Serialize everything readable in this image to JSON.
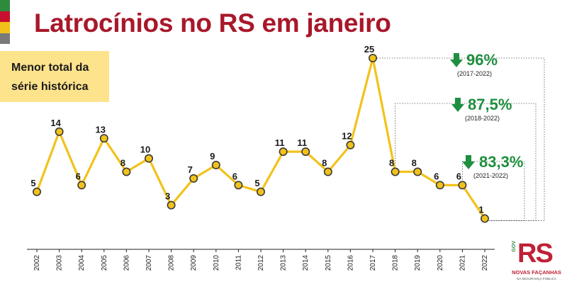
{
  "title": "Latrocínios no RS em janeiro",
  "callout": {
    "line1": "Menor total da",
    "line2": "série histórica"
  },
  "reductions": [
    {
      "percent": "96%",
      "range": "(2017-2022)"
    },
    {
      "percent": "87,5%",
      "range": "(2018-2022)"
    },
    {
      "percent": "83,3%",
      "range": "(2021-2022)"
    }
  ],
  "logo": {
    "mark": "RS",
    "side": "GOV",
    "line1": "NOVAS FAÇANHAS",
    "line2": "NA SEGURANÇA PÚBLICA"
  },
  "colors": {
    "title": "#a8182a",
    "line": "#f2c21a",
    "marker": "#f2c21a",
    "reduction": "#1e8f3f",
    "callout": "#fde38c"
  },
  "flag_colors": [
    "#2e8b3e",
    "#c8102e",
    "#f2c21a",
    "#7a7a7a"
  ],
  "chart_data": {
    "type": "line",
    "x": [
      "2002",
      "2003",
      "2004",
      "2005",
      "2006",
      "2007",
      "2008",
      "2009",
      "2010",
      "2011",
      "2012",
      "2013",
      "2014",
      "2015",
      "2016",
      "2017",
      "2018",
      "2019",
      "2020",
      "2021",
      "2022"
    ],
    "values": [
      5,
      14,
      6,
      13,
      8,
      10,
      3,
      7,
      9,
      6,
      5,
      11,
      11,
      8,
      12,
      25,
      8,
      8,
      6,
      6,
      1
    ],
    "title": "Latrocínios no RS em janeiro",
    "ylim": [
      0,
      25
    ],
    "grid": false,
    "data_labels": true
  }
}
